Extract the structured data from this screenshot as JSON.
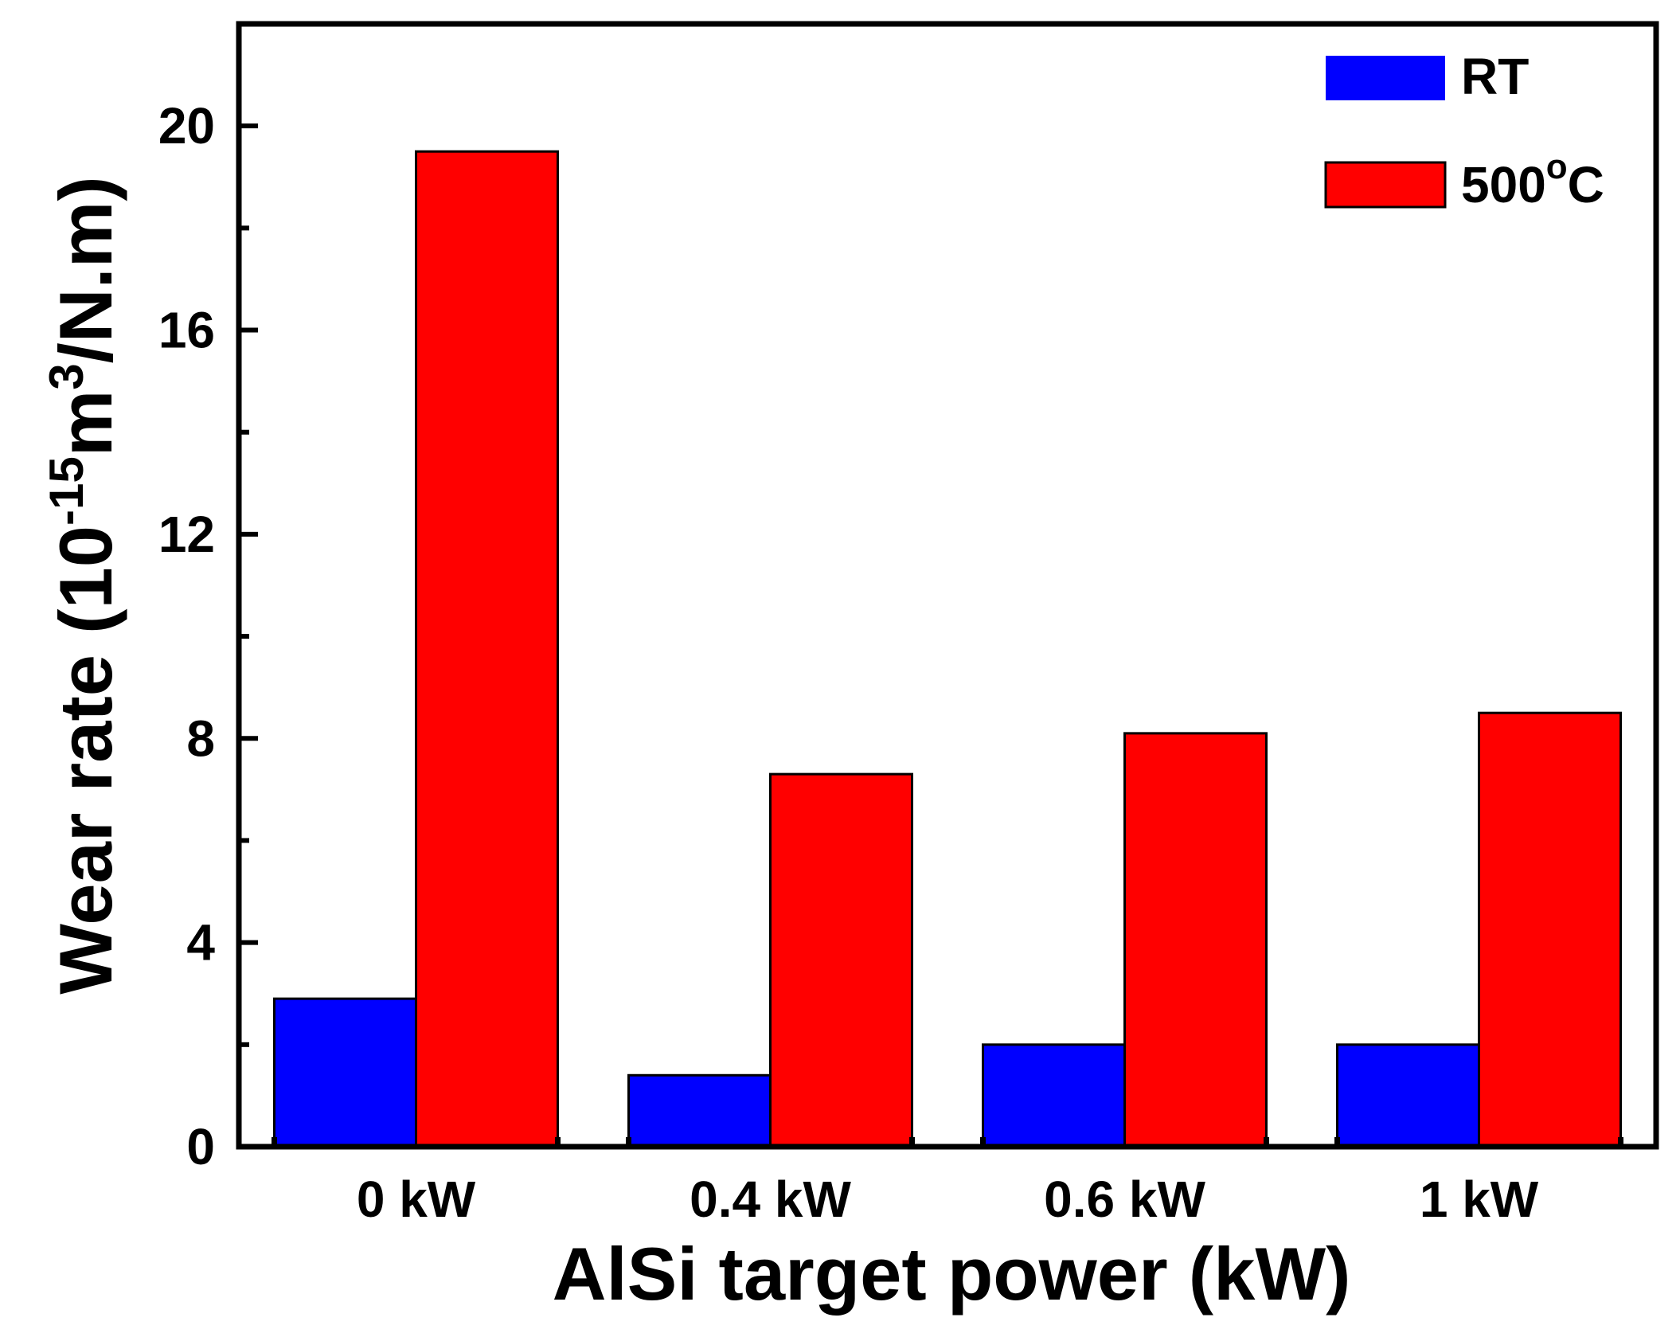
{
  "chart_data": {
    "type": "bar",
    "categories": [
      "0 kW",
      "0.4 kW",
      "0.6 kW",
      "1 kW"
    ],
    "series": [
      {
        "name": "RT",
        "color": "#0000ff",
        "values": [
          2.9,
          1.4,
          2.0,
          2.0
        ]
      },
      {
        "name": "500oC",
        "name_base": "500",
        "name_sup": "o",
        "name_tail": "C",
        "color": "#ff0000",
        "values": [
          19.5,
          7.3,
          8.1,
          8.5
        ]
      }
    ],
    "xlabel": "AlSi target power (kW)",
    "ylabel": {
      "prefix": "Wear rate  (10",
      "sup1": "-15",
      "mid": "m",
      "sup2": "3",
      "suffix": "/N.m)"
    },
    "ylim": [
      0,
      22
    ],
    "yticks": [
      0,
      4,
      8,
      12,
      16,
      20
    ],
    "grid": false,
    "legend": "top-right"
  }
}
